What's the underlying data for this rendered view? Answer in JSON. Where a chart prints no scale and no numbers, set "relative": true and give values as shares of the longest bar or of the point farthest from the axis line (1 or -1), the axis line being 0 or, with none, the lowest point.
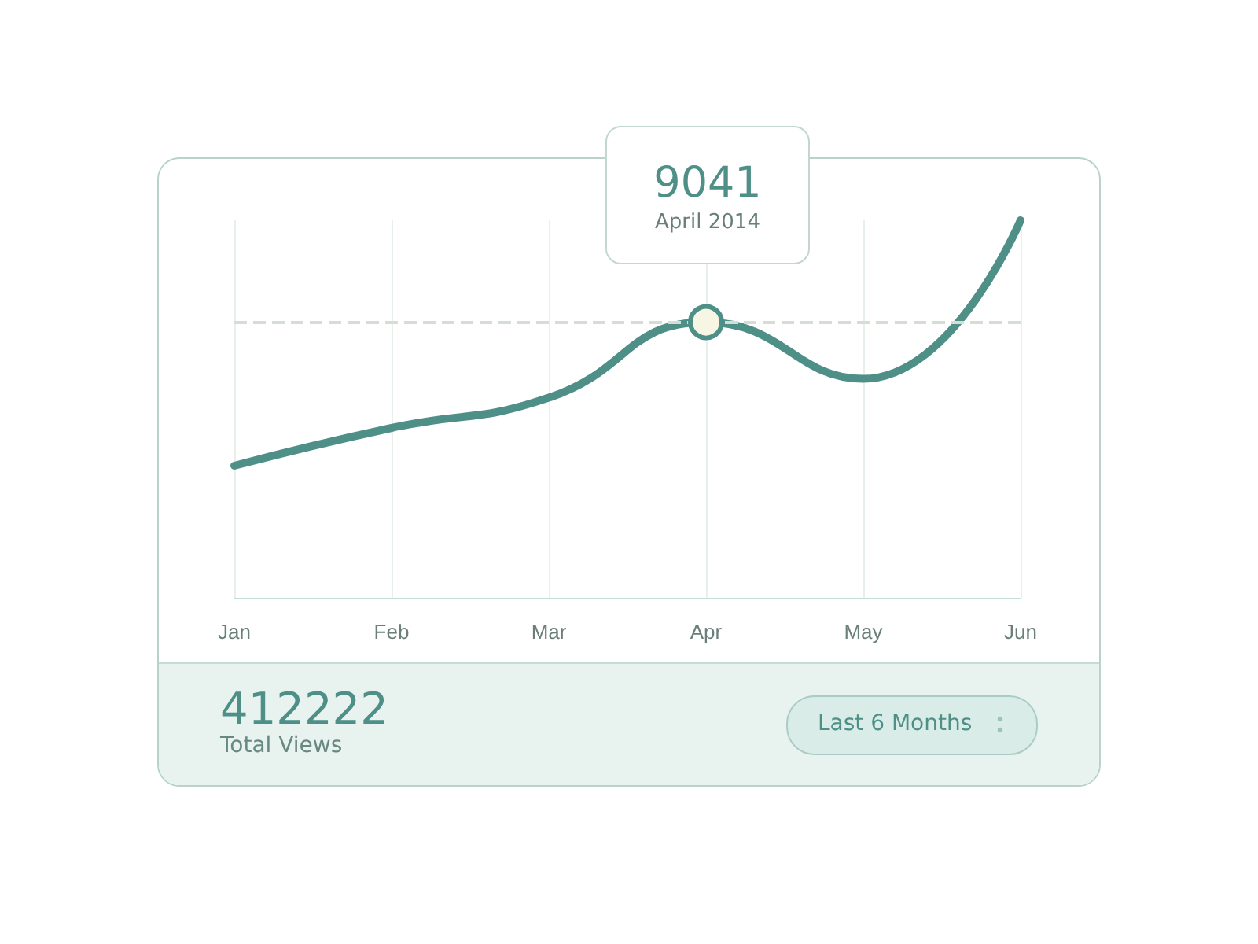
{
  "chart_data": {
    "type": "line",
    "relative": true,
    "categories": [
      "Jan",
      "Feb",
      "Mar",
      "Apr",
      "May",
      "Jun"
    ],
    "series": [
      {
        "color": "#4e8f88",
        "values": [
          0.35,
          0.45,
          0.53,
          0.73,
          0.58,
          1
        ]
      }
    ],
    "grid": "x",
    "marker": "none",
    "line_style": "solid",
    "ref_lines": [
      {
        "axis": "y",
        "value": 0.73,
        "color": "#d6dcd6",
        "line_style": "dashed"
      }
    ],
    "annotations": [
      {
        "text": "9041",
        "x": "Apr",
        "y": 0.73
      },
      "April 2014",
      "412222",
      "Total Views",
      "Last 6 Months"
    ]
  }
}
